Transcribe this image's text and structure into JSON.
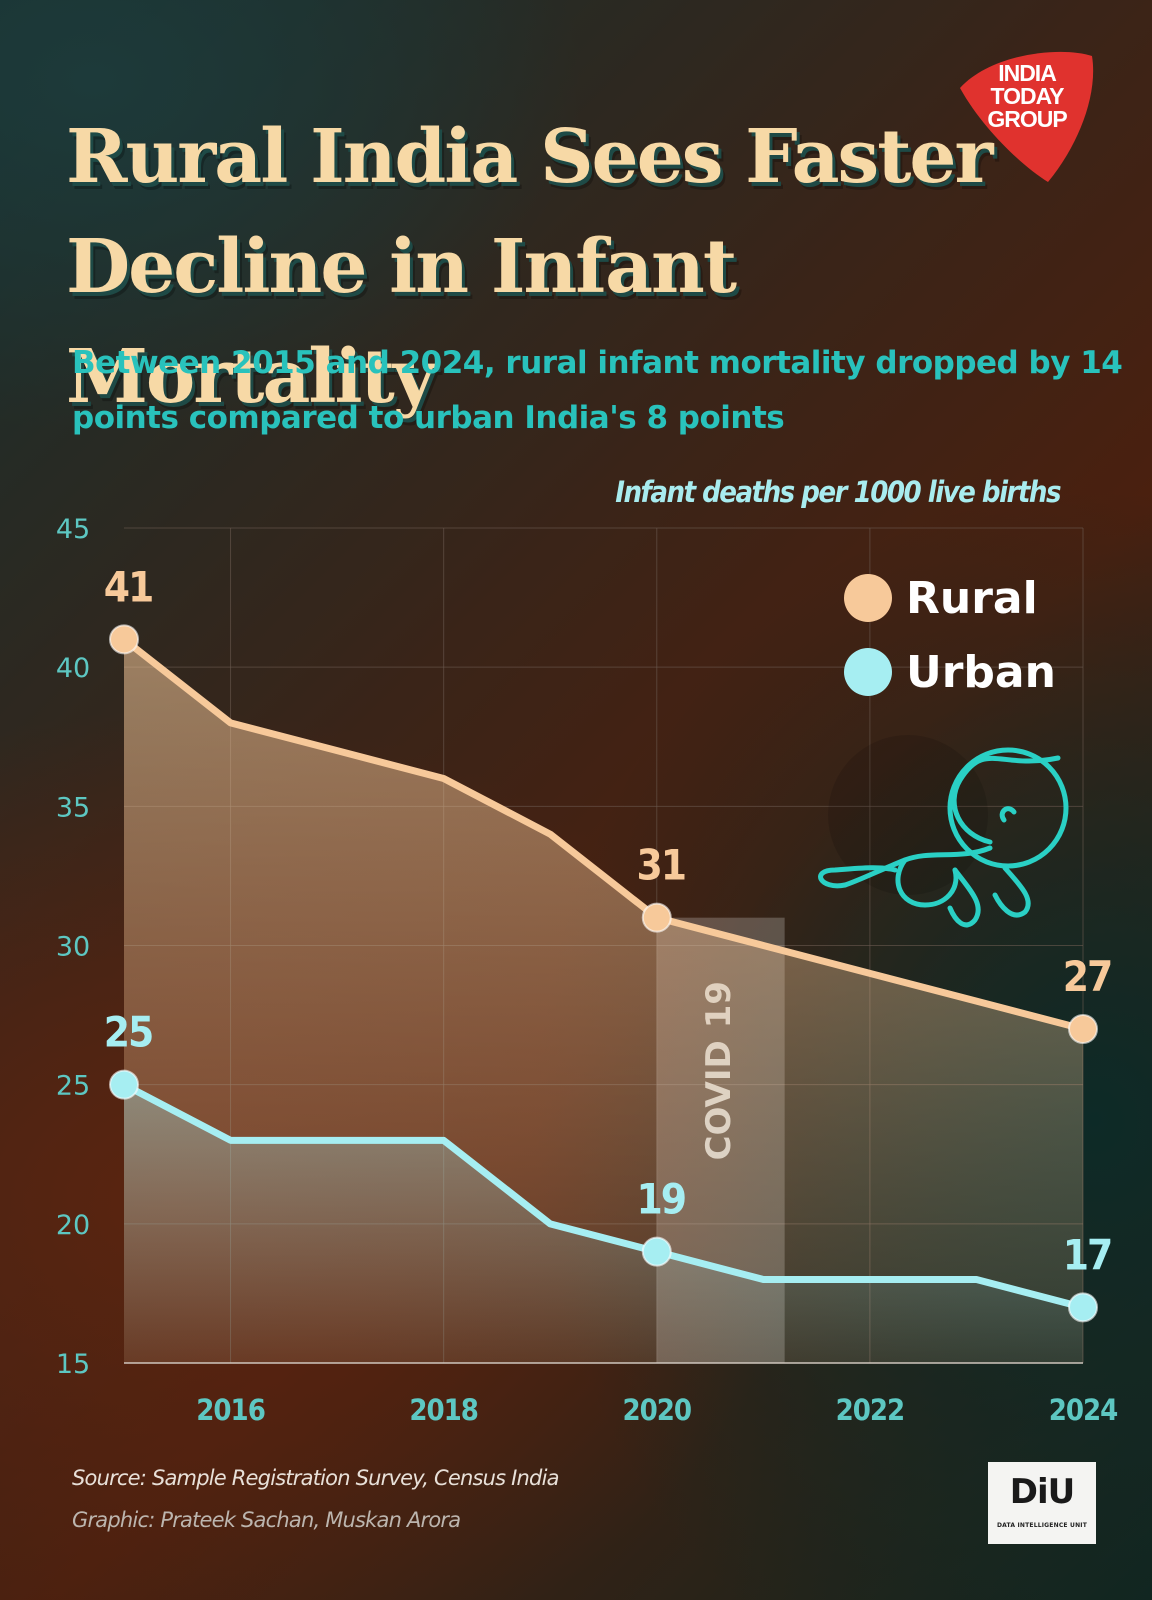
{
  "header": {
    "title": "Rural India Sees Faster Decline in Infant Mortality",
    "subtitle": "Between 2015 and 2024, rural infant mortality dropped by 14 points compared to urban India's 8 points",
    "unit": "Infant deaths per 1000 live births"
  },
  "brand": {
    "logo_text": "INDIA TODAY GROUP",
    "logo_color": "#e0322e",
    "diu_text": "DiU",
    "diu_subtext": "DATA INTELLIGENCE UNIT"
  },
  "footer": {
    "source": "Source: Sample Registration Survey, Census India",
    "credit": "Graphic: Prateek Sachan, Muskan Arora"
  },
  "chart_data": {
    "type": "area",
    "x": [
      2015,
      2016,
      2017,
      2018,
      2019,
      2020,
      2021,
      2022,
      2023,
      2024
    ],
    "xticks": [
      2016,
      2018,
      2020,
      2022,
      2024
    ],
    "yticks": [
      15,
      20,
      25,
      30,
      35,
      40,
      45
    ],
    "ylim": [
      15,
      45
    ],
    "xlim": [
      2015,
      2024
    ],
    "grid": true,
    "legend_position": "top-right",
    "series": [
      {
        "name": "Rural",
        "color": "#f7c99a",
        "values": [
          41,
          38,
          37,
          36,
          34,
          31,
          30,
          29,
          28,
          27
        ],
        "labels": [
          {
            "x": 2015,
            "text": "41"
          },
          {
            "x": 2020,
            "text": "31"
          },
          {
            "x": 2024,
            "text": "27"
          }
        ]
      },
      {
        "name": "Urban",
        "color": "#a6eef2",
        "values": [
          25,
          23,
          23,
          23,
          20,
          19,
          18,
          18,
          18,
          17
        ],
        "labels": [
          {
            "x": 2015,
            "text": "25"
          },
          {
            "x": 2020,
            "text": "19"
          },
          {
            "x": 2024,
            "text": "17"
          }
        ]
      }
    ],
    "annotations": [
      {
        "text": "COVID 19",
        "x_start": 2020,
        "x_end": 2021.2
      }
    ],
    "colors": {
      "axis_text": "#5dc7c2",
      "grid": "#6a5a50",
      "accent_teal": "#2ad0c5"
    }
  }
}
